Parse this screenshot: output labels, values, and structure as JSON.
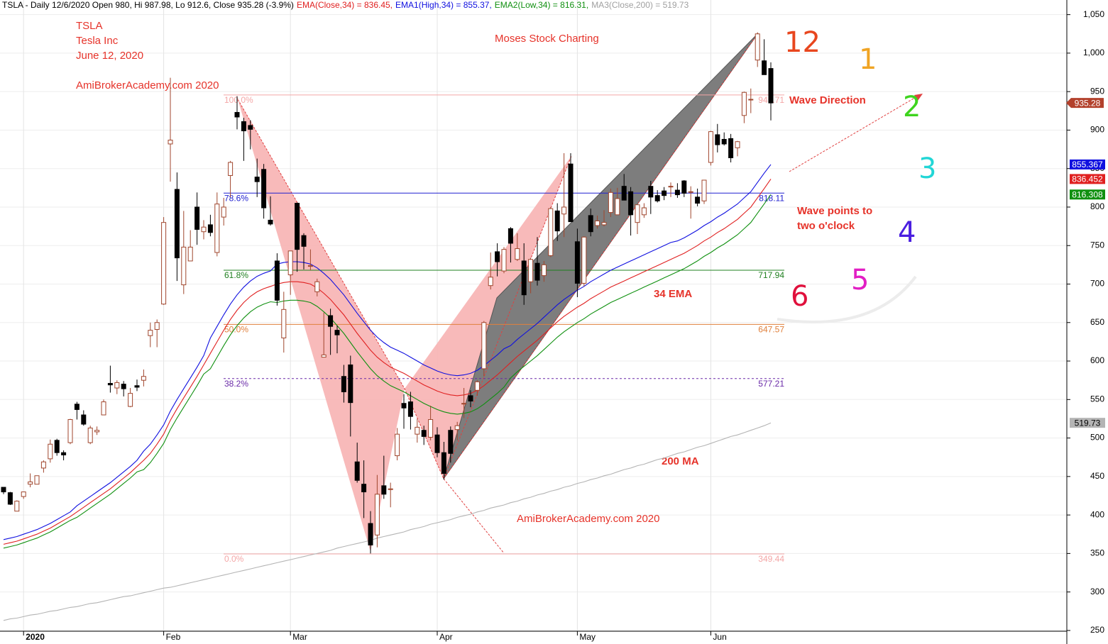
{
  "chart_data": {
    "type": "candlestick",
    "header": [
      {
        "text": "TSLA - Daily 12/6/2020 Open 980, Hi 987.98, Lo 912.6, Close 935.28 (-3.9%)",
        "color": "#000000"
      },
      {
        "text": "EMA(Close,34) = 836.45,",
        "color": "#e02020"
      },
      {
        "text": "EMA1(High,34) = 855.37,",
        "color": "#1010e0"
      },
      {
        "text": "EMA2(Low,34) = 816.31,",
        "color": "#109010"
      },
      {
        "text": "MA3(Close,200) = 519.73",
        "color": "#a0a0a0"
      }
    ],
    "annotations": [
      "TSLA",
      "Tesla Inc",
      "June 12, 2020",
      "AmiBrokerAcademy.com 2020",
      "Moses Stock Charting",
      "Wave Direction",
      "Wave points to",
      "two o'clock",
      "34 EMA",
      "200 MA",
      "AmiBrokerAcademy.com  2020"
    ],
    "clock_numbers": [
      12,
      1,
      2,
      3,
      4,
      5,
      6
    ],
    "categories": [
      null,
      null,
      null,
      "2020",
      null,
      null,
      null,
      null,
      null,
      null,
      null,
      null,
      null,
      null,
      null,
      null,
      null,
      null,
      null,
      null,
      null,
      null,
      null,
      null,
      "Feb",
      null,
      null,
      null,
      null,
      null,
      null,
      null,
      null,
      null,
      null,
      null,
      null,
      null,
      null,
      null,
      null,
      null,
      null,
      "Mar",
      null,
      null,
      null,
      null,
      null,
      null,
      null,
      null,
      null,
      null,
      null,
      null,
      null,
      null,
      null,
      null,
      null,
      null,
      null,
      null,
      null,
      "Apr",
      null,
      null,
      null,
      null,
      null,
      null,
      null,
      null,
      null,
      null,
      null,
      null,
      null,
      null,
      null,
      null,
      null,
      null,
      null,
      null,
      "May",
      null,
      null,
      null,
      null,
      null,
      null,
      null,
      null,
      null,
      null,
      null,
      null,
      null,
      null,
      null,
      null,
      null,
      null,
      null,
      "Jun",
      null,
      null,
      null,
      null,
      null,
      null,
      null,
      null,
      null
    ],
    "open": [
      436,
      429,
      405,
      424,
      440,
      440,
      461,
      473,
      497,
      481,
      494,
      544,
      530,
      494,
      508,
      530,
      571,
      565,
      570,
      541,
      568,
      575,
      633,
      641,
      674,
      882,
      823,
      699,
      730,
      800,
      768,
      777,
      741,
      787,
      841,
      923,
      911,
      906,
      839,
      849,
      783,
      730,
      630,
      712,
      805,
      763,
      723,
      690,
      605,
      659,
      640,
      580,
      595,
      469,
      440,
      389,
      374,
      438,
      433,
      477,
      545,
      547,
      505,
      510,
      501,
      504,
      481,
      510,
      511,
      545,
      555,
      562,
      590,
      698,
      742,
      717,
      772,
      732,
      730,
      703,
      727,
      711,
      737,
      795,
      791,
      856,
      755,
      701,
      789,
      776,
      777,
      793,
      790,
      827,
      820,
      780,
      790,
      827,
      815,
      821,
      827,
      822,
      834,
      820,
      813,
      808,
      858,
      894,
      888,
      889,
      877,
      919,
      940,
      991,
      990,
      980
    ],
    "high": [
      436,
      430,
      419,
      430,
      454,
      451,
      471,
      498,
      499,
      484,
      525,
      547,
      536,
      516,
      515,
      550,
      594,
      575,
      574,
      565,
      576,
      589,
      650,
      654,
      787,
      968,
      845,
      795,
      770,
      819,
      783,
      790,
      819,
      812,
      860,
      944,
      916,
      913,
      863,
      856,
      814,
      740,
      690,
      743,
      806,
      766,
      745,
      707,
      663,
      668,
      646,
      595,
      607,
      494,
      471,
      405,
      452,
      477,
      442,
      513,
      557,
      560,
      525,
      516,
      542,
      514,
      495,
      515,
      521,
      565,
      562,
      575,
      652,
      741,
      753,
      748,
      774,
      766,
      753,
      734,
      761,
      730,
      800,
      805,
      870,
      870,
      772,
      762,
      798,
      789,
      796,
      824,
      825,
      843,
      826,
      803,
      805,
      834,
      822,
      826,
      832,
      831,
      835,
      827,
      824,
      835,
      899,
      908,
      897,
      895,
      886,
      950,
      954,
      1027,
      1018,
      987.98
    ],
    "low": [
      427,
      413,
      405,
      421,
      436,
      440,
      455,
      468,
      477,
      471,
      492,
      524,
      516,
      492,
      504,
      530,
      559,
      557,
      554,
      540,
      561,
      567,
      618,
      618,
      673,
      833,
      704,
      687,
      730,
      751,
      758,
      762,
      736,
      776,
      813,
      901,
      860,
      875,
      813,
      785,
      776,
      672,
      611,
      686,
      716,
      719,
      718,
      684,
      605,
      608,
      610,
      546,
      502,
      442,
      396,
      350,
      358,
      421,
      410,
      471,
      512,
      511,
      494,
      491,
      497,
      475,
      446,
      468,
      497,
      526,
      540,
      555,
      580,
      693,
      710,
      714,
      728,
      730,
      673,
      688,
      698,
      703,
      735,
      756,
      761,
      781,
      683,
      697,
      762,
      772,
      775,
      787,
      790,
      809,
      763,
      765,
      786,
      791,
      806,
      809,
      813,
      812,
      813,
      785,
      801,
      804,
      854,
      871,
      880,
      858,
      866,
      909,
      922,
      982,
      972,
      912.6
    ],
    "close": [
      430,
      414,
      418,
      430,
      443,
      451,
      469,
      492,
      481,
      478,
      524,
      537,
      518,
      513,
      510,
      547,
      569,
      572,
      564,
      558,
      566,
      580,
      640,
      650,
      780,
      887,
      734,
      748,
      748,
      771,
      774,
      767,
      804,
      800,
      858,
      917,
      899,
      901,
      833,
      799,
      778,
      679,
      667,
      743,
      745,
      749,
      724,
      703,
      608,
      645,
      634,
      560,
      546,
      445,
      430,
      361,
      427,
      427,
      434,
      505,
      539,
      528,
      514,
      502,
      524,
      481,
      454,
      480,
      516,
      545,
      548,
      573,
      650,
      709,
      729,
      745,
      753,
      746,
      686,
      732,
      705,
      725,
      798,
      769,
      800,
      781,
      701,
      761,
      768,
      782,
      780,
      819,
      811,
      809,
      790,
      803,
      799,
      813,
      808,
      815,
      827,
      816,
      818,
      820,
      805,
      835,
      898,
      881,
      882,
      864,
      885,
      949,
      940,
      1025,
      972,
      935.28
    ],
    "candle_colors": {
      "up_fill": "#ffffff",
      "up_line": "#a0462d",
      "down": "#000000",
      "tag": "#b3412c",
      "tag_text": "#ffffff"
    },
    "overlays": [
      {
        "color": "#e02020",
        "tag_text": "#ffffff",
        "values": [
          362,
          364,
          366,
          369,
          372,
          375,
          379,
          383,
          388,
          393,
          398,
          404,
          410,
          416,
          422,
          428,
          434,
          441,
          448,
          455,
          463,
          471,
          480,
          492,
          505,
          523,
          538,
          552,
          566,
          580,
          595,
          610,
          625,
          640,
          654,
          666,
          676,
          684,
          690,
          694,
          697,
          700,
          702,
          703,
          703,
          702,
          700,
          695,
          688,
          680,
          670,
          660,
          648,
          636,
          625,
          614,
          605,
          598,
          592,
          588,
          584,
          579,
          574,
          569,
          565,
          561,
          558,
          556,
          555,
          556,
          558,
          562,
          568,
          575,
          582,
          590,
          598,
          606,
          613,
          620,
          627,
          635,
          643,
          651,
          658,
          664,
          670,
          675,
          681,
          686,
          691,
          696,
          700,
          704,
          708,
          712,
          716,
          720,
          724,
          728,
          732,
          736,
          740,
          745,
          750,
          756,
          761,
          767,
          772,
          778,
          784,
          792,
          800,
          812,
          824,
          836.452
        ]
      },
      {
        "color": "#1010e0",
        "tag_text": "#ffffff",
        "values": [
          368,
          370,
          372,
          375,
          378,
          381,
          385,
          389,
          394,
          399,
          404,
          412,
          418,
          424,
          430,
          436,
          442,
          449,
          456,
          463,
          471,
          483,
          492,
          504,
          517,
          535,
          550,
          564,
          578,
          592,
          607,
          630,
          645,
          660,
          674,
          686,
          696,
          704,
          710,
          714,
          717,
          726,
          728,
          729,
          729,
          728,
          726,
          721,
          714,
          706,
          696,
          686,
          674,
          662,
          651,
          640,
          631,
          624,
          618,
          614,
          610,
          605,
          600,
          595,
          591,
          587,
          584,
          582,
          581,
          582,
          584,
          588,
          594,
          601,
          608,
          616,
          620,
          628,
          635,
          642,
          649,
          657,
          665,
          673,
          680,
          686,
          692,
          697,
          703,
          708,
          713,
          718,
          722,
          726,
          730,
          734,
          738,
          742,
          746,
          750,
          754,
          756,
          760,
          765,
          770,
          776,
          781,
          787,
          792,
          798,
          804,
          812,
          820,
          832,
          844,
          855.367
        ]
      },
      {
        "color": "#109010",
        "tag_text": "#ffffff",
        "values": [
          357,
          359,
          361,
          364,
          367,
          370,
          374,
          378,
          383,
          388,
          393,
          397,
          403,
          409,
          415,
          421,
          427,
          434,
          441,
          448,
          456,
          459,
          468,
          480,
          493,
          511,
          526,
          540,
          554,
          568,
          583,
          590,
          605,
          620,
          634,
          646,
          656,
          664,
          670,
          674,
          677,
          676,
          678,
          679,
          679,
          678,
          676,
          671,
          664,
          656,
          646,
          636,
          624,
          612,
          601,
          590,
          581,
          574,
          568,
          564,
          560,
          555,
          550,
          545,
          541,
          537,
          534,
          532,
          531,
          532,
          534,
          538,
          544,
          551,
          558,
          566,
          578,
          586,
          593,
          600,
          607,
          615,
          623,
          631,
          638,
          644,
          650,
          655,
          661,
          666,
          671,
          676,
          680,
          684,
          688,
          692,
          696,
          700,
          704,
          708,
          712,
          716,
          720,
          725,
          730,
          736,
          741,
          747,
          752,
          758,
          764,
          772,
          780,
          792,
          804,
          816.308
        ]
      },
      {
        "color": "#b4b4b4",
        "tag_text": "#000000",
        "values": [
          263,
          265,
          266,
          268,
          270,
          271,
          273,
          275,
          276,
          278,
          280,
          281,
          283,
          285,
          286,
          288,
          290,
          292,
          294,
          295,
          297,
          299,
          301,
          303,
          305,
          306,
          308,
          310,
          312,
          314,
          316,
          318,
          320,
          322,
          324,
          326,
          328,
          330,
          332,
          334,
          336,
          338,
          340,
          342,
          344,
          346,
          348,
          350,
          352,
          354,
          357,
          359,
          361,
          363,
          365,
          367,
          370,
          372,
          374,
          376,
          378,
          381,
          383,
          385,
          388,
          390,
          392,
          394,
          397,
          399,
          401,
          404,
          406,
          409,
          411,
          413,
          416,
          418,
          421,
          423,
          426,
          428,
          431,
          433,
          436,
          438,
          441,
          443,
          446,
          448,
          451,
          453,
          456,
          459,
          461,
          464,
          466,
          469,
          472,
          474,
          477,
          480,
          482,
          485,
          488,
          490,
          493,
          496,
          499,
          502,
          504,
          507,
          510,
          513,
          516,
          519.73
        ]
      }
    ],
    "fib_levels": [
      {
        "label": "100.0%",
        "value": 945.71,
        "color": "#f4a6a6"
      },
      {
        "label": "78.6%",
        "value": 818.11,
        "color": "#2020d0"
      },
      {
        "label": "61.8%",
        "value": 717.94,
        "color": "#208020"
      },
      {
        "label": "50.0%",
        "value": 647.57,
        "color": "#e0803c"
      },
      {
        "label": "38.2%",
        "value": 577.21,
        "color": "#6a2aa8",
        "dashed": true
      },
      {
        "label": "0.0%",
        "value": 349.44,
        "color": "#f4a6a6"
      }
    ],
    "ylim": [
      249,
      1069
    ],
    "yticks": [
      250,
      300,
      350,
      400,
      450,
      500,
      550,
      600,
      650,
      700,
      750,
      800,
      850,
      900,
      950,
      {
        "value": 1000,
        "label": "1,000"
      },
      {
        "value": 1050,
        "label": "1,050"
      }
    ],
    "grid": true
  }
}
